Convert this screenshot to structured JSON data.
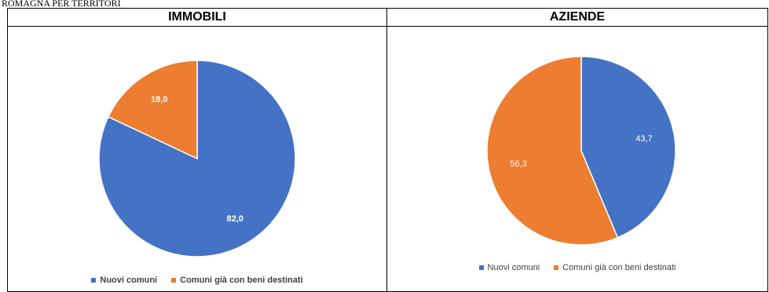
{
  "caption": "ROMAGNA PER TERRITORI",
  "colors": {
    "blue": "#4472C4",
    "orange": "#ED7D31"
  },
  "chart_data": [
    {
      "type": "pie",
      "title": "IMMOBILI",
      "categories": [
        "Nuovi comuni",
        "Comuni già con beni destinati"
      ],
      "values": [
        82.0,
        18.0
      ],
      "labels": [
        "82,0",
        "18,0"
      ],
      "legend": "bottom"
    },
    {
      "type": "pie",
      "title": "AZIENDE",
      "categories": [
        "Nuovi comuni",
        "Comuni già con beni destinati"
      ],
      "values": [
        43.7,
        56.3
      ],
      "labels": [
        "43,7",
        "56,3"
      ],
      "legend": "bottom"
    }
  ]
}
